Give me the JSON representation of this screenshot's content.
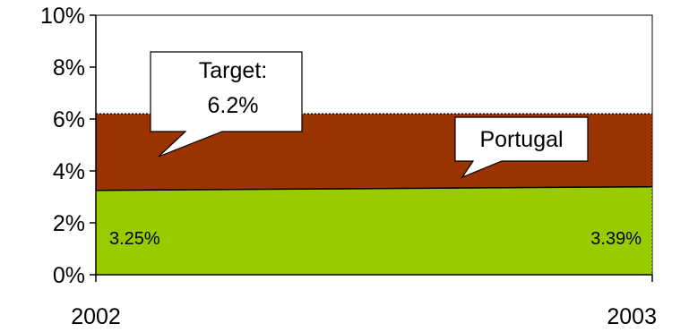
{
  "chart_data": {
    "type": "area",
    "x": [
      "2002",
      "2003"
    ],
    "series": [
      {
        "name": "Portugal",
        "values": [
          3.25,
          3.39
        ],
        "color": "#99cc00"
      },
      {
        "name": "Target",
        "values": [
          6.2,
          6.2
        ],
        "color": "#993300"
      }
    ],
    "ylim": [
      0,
      10
    ],
    "yticks": [
      "0%",
      "2%",
      "4%",
      "6%",
      "8%",
      "10%"
    ],
    "ytick_values": [
      0,
      2,
      4,
      6,
      8,
      10
    ],
    "xticks": [
      "2002",
      "2003"
    ],
    "grid": false,
    "data_labels": [
      "3.25%",
      "3.39%"
    ],
    "annotations": {
      "target_line1": "Target:",
      "target_line2": "6.2%",
      "portugal": "Portugal"
    }
  }
}
